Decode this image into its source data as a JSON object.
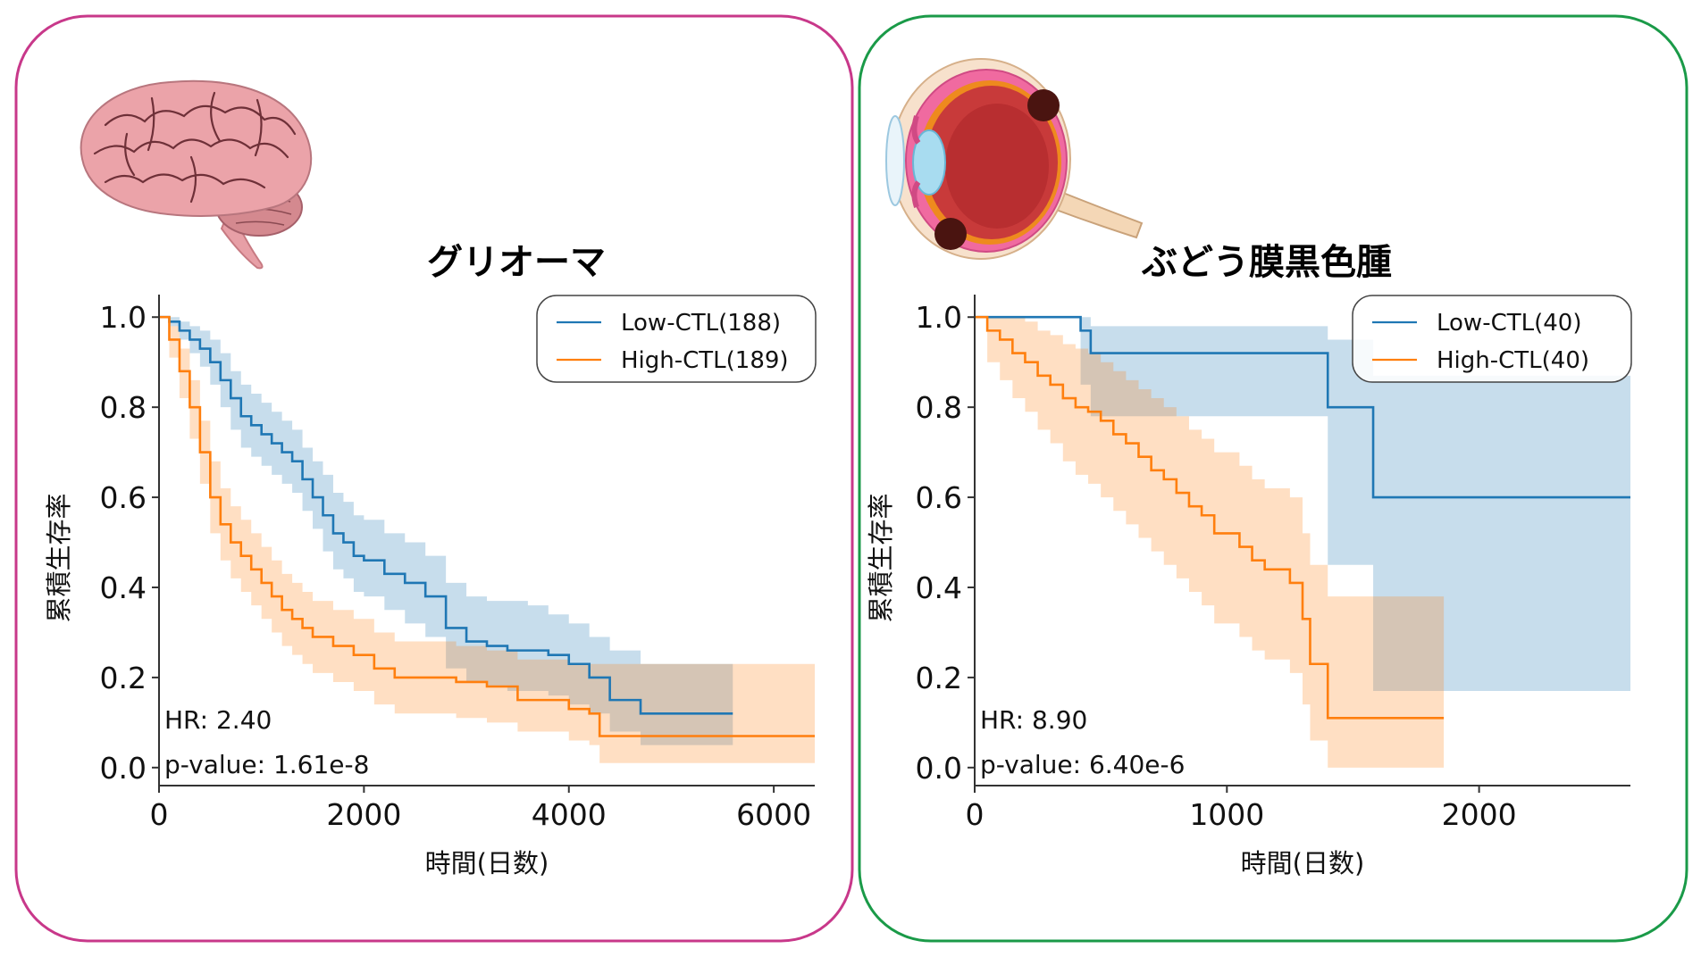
{
  "colors": {
    "low": "#1f77b4",
    "high": "#ff7f0e",
    "left_frame": "#c8388a",
    "right_frame": "#1a9a48"
  },
  "panels": [
    {
      "illustration": "brain-icon",
      "chart_data": {
        "type": "line",
        "title": "グリオーマ",
        "xlabel": "時間(日数)",
        "ylabel": "累積生存率",
        "xlim": [
          0,
          6400
        ],
        "ylim": [
          -0.04,
          1.05
        ],
        "xticks": [
          0,
          2000,
          4000,
          6000
        ],
        "xtick_labels": [
          "0",
          "2000",
          "4000",
          "6000"
        ],
        "yticks": [
          0.0,
          0.2,
          0.4,
          0.6,
          0.8,
          1.0
        ],
        "ytick_labels": [
          "0.0",
          "0.2",
          "0.4",
          "0.6",
          "0.8",
          "1.0"
        ],
        "legend_position": "top-right",
        "annotations": [
          "HR: 2.40",
          "p-value: 1.61e-8"
        ],
        "series": [
          {
            "name": "Low-CTL(188)",
            "color_key": "low",
            "x": [
              0,
              100,
              200,
              300,
              400,
              500,
              600,
              700,
              800,
              900,
              1000,
              1100,
              1200,
              1300,
              1400,
              1500,
              1600,
              1700,
              1800,
              1900,
              2000,
              2200,
              2400,
              2600,
              2800,
              3000,
              3200,
              3400,
              3600,
              3800,
              4000,
              4200,
              4400,
              4700,
              5000,
              5600
            ],
            "y": [
              1.0,
              0.99,
              0.97,
              0.95,
              0.93,
              0.9,
              0.86,
              0.82,
              0.78,
              0.76,
              0.74,
              0.72,
              0.7,
              0.68,
              0.64,
              0.6,
              0.56,
              0.52,
              0.5,
              0.47,
              0.46,
              0.43,
              0.41,
              0.38,
              0.31,
              0.28,
              0.27,
              0.26,
              0.26,
              0.25,
              0.23,
              0.2,
              0.15,
              0.12,
              0.12,
              0.12
            ],
            "ci_upper": [
              1.0,
              1.0,
              0.99,
              0.98,
              0.97,
              0.95,
              0.92,
              0.88,
              0.85,
              0.83,
              0.81,
              0.79,
              0.77,
              0.75,
              0.71,
              0.68,
              0.65,
              0.61,
              0.59,
              0.56,
              0.55,
              0.52,
              0.5,
              0.47,
              0.41,
              0.38,
              0.37,
              0.37,
              0.36,
              0.34,
              0.32,
              0.29,
              0.26,
              0.23,
              0.23,
              0.23
            ],
            "ci_lower": [
              1.0,
              0.98,
              0.95,
              0.92,
              0.89,
              0.85,
              0.8,
              0.75,
              0.71,
              0.69,
              0.67,
              0.65,
              0.63,
              0.61,
              0.57,
              0.53,
              0.48,
              0.44,
              0.42,
              0.39,
              0.38,
              0.35,
              0.32,
              0.29,
              0.22,
              0.19,
              0.18,
              0.17,
              0.17,
              0.16,
              0.14,
              0.12,
              0.08,
              0.05,
              0.05,
              0.05
            ]
          },
          {
            "name": "High-CTL(189)",
            "color_key": "high",
            "x": [
              0,
              100,
              200,
              300,
              400,
              500,
              600,
              700,
              800,
              900,
              1000,
              1100,
              1200,
              1300,
              1400,
              1500,
              1700,
              1900,
              2100,
              2300,
              2600,
              2900,
              3200,
              3500,
              4000,
              4200,
              4300,
              5000,
              6000,
              6400
            ],
            "y": [
              1.0,
              0.95,
              0.88,
              0.8,
              0.7,
              0.6,
              0.54,
              0.5,
              0.47,
              0.44,
              0.41,
              0.38,
              0.35,
              0.33,
              0.31,
              0.29,
              0.27,
              0.25,
              0.22,
              0.2,
              0.2,
              0.19,
              0.18,
              0.15,
              0.13,
              0.12,
              0.07,
              0.07,
              0.07,
              0.07
            ],
            "ci_upper": [
              1.0,
              0.98,
              0.93,
              0.86,
              0.77,
              0.68,
              0.62,
              0.58,
              0.55,
              0.52,
              0.49,
              0.46,
              0.43,
              0.41,
              0.39,
              0.37,
              0.35,
              0.33,
              0.3,
              0.28,
              0.28,
              0.27,
              0.26,
              0.24,
              0.23,
              0.23,
              0.23,
              0.23,
              0.23,
              0.23
            ],
            "ci_lower": [
              1.0,
              0.91,
              0.82,
              0.73,
              0.63,
              0.52,
              0.46,
              0.42,
              0.39,
              0.36,
              0.33,
              0.3,
              0.27,
              0.25,
              0.23,
              0.21,
              0.19,
              0.17,
              0.14,
              0.12,
              0.12,
              0.11,
              0.1,
              0.08,
              0.06,
              0.05,
              0.01,
              0.01,
              0.01,
              0.01
            ]
          }
        ]
      }
    },
    {
      "illustration": "eye-icon",
      "chart_data": {
        "type": "line",
        "title": "ぶどう膜黒色腫",
        "xlabel": "時間(日数)",
        "ylabel": "累積生存率",
        "xlim": [
          0,
          2600
        ],
        "ylim": [
          -0.04,
          1.05
        ],
        "xticks": [
          0,
          1000,
          2000
        ],
        "xtick_labels": [
          "0",
          "1000",
          "2000"
        ],
        "yticks": [
          0.0,
          0.2,
          0.4,
          0.6,
          0.8,
          1.0
        ],
        "ytick_labels": [
          "0.0",
          "0.2",
          "0.4",
          "0.6",
          "0.8",
          "1.0"
        ],
        "legend_position": "top-right",
        "annotations": [
          "HR: 8.90",
          "p-value: 6.40e-6"
        ],
        "series": [
          {
            "name": "Low-CTL(40)",
            "color_key": "low",
            "x": [
              0,
              420,
              460,
              1400,
              1580,
              2600
            ],
            "y": [
              1.0,
              0.97,
              0.92,
              0.8,
              0.6,
              0.6
            ],
            "ci_upper": [
              1.0,
              1.0,
              0.98,
              0.95,
              0.87,
              0.87
            ],
            "ci_lower": [
              1.0,
              0.85,
              0.78,
              0.45,
              0.17,
              0.17
            ]
          },
          {
            "name": "High-CTL(40)",
            "color_key": "high",
            "x": [
              0,
              50,
              100,
              150,
              200,
              250,
              300,
              350,
              400,
              450,
              500,
              550,
              600,
              650,
              700,
              750,
              800,
              850,
              900,
              950,
              1000,
              1050,
              1100,
              1150,
              1200,
              1250,
              1300,
              1330,
              1400,
              1860
            ],
            "y": [
              1.0,
              0.97,
              0.95,
              0.92,
              0.9,
              0.87,
              0.85,
              0.82,
              0.8,
              0.79,
              0.77,
              0.74,
              0.72,
              0.69,
              0.66,
              0.64,
              0.61,
              0.58,
              0.56,
              0.52,
              0.52,
              0.49,
              0.46,
              0.44,
              0.44,
              0.41,
              0.33,
              0.23,
              0.11,
              0.11
            ],
            "ci_upper": [
              1.0,
              1.0,
              1.0,
              1.0,
              0.99,
              0.97,
              0.96,
              0.94,
              0.93,
              0.92,
              0.9,
              0.88,
              0.86,
              0.84,
              0.82,
              0.8,
              0.78,
              0.75,
              0.73,
              0.7,
              0.7,
              0.67,
              0.64,
              0.62,
              0.62,
              0.6,
              0.52,
              0.45,
              0.38,
              0.38
            ],
            "ci_lower": [
              1.0,
              0.9,
              0.86,
              0.82,
              0.79,
              0.75,
              0.72,
              0.68,
              0.65,
              0.63,
              0.6,
              0.57,
              0.54,
              0.51,
              0.48,
              0.45,
              0.42,
              0.39,
              0.36,
              0.32,
              0.32,
              0.29,
              0.26,
              0.24,
              0.24,
              0.21,
              0.14,
              0.06,
              0.0,
              0.0
            ]
          }
        ]
      }
    }
  ]
}
